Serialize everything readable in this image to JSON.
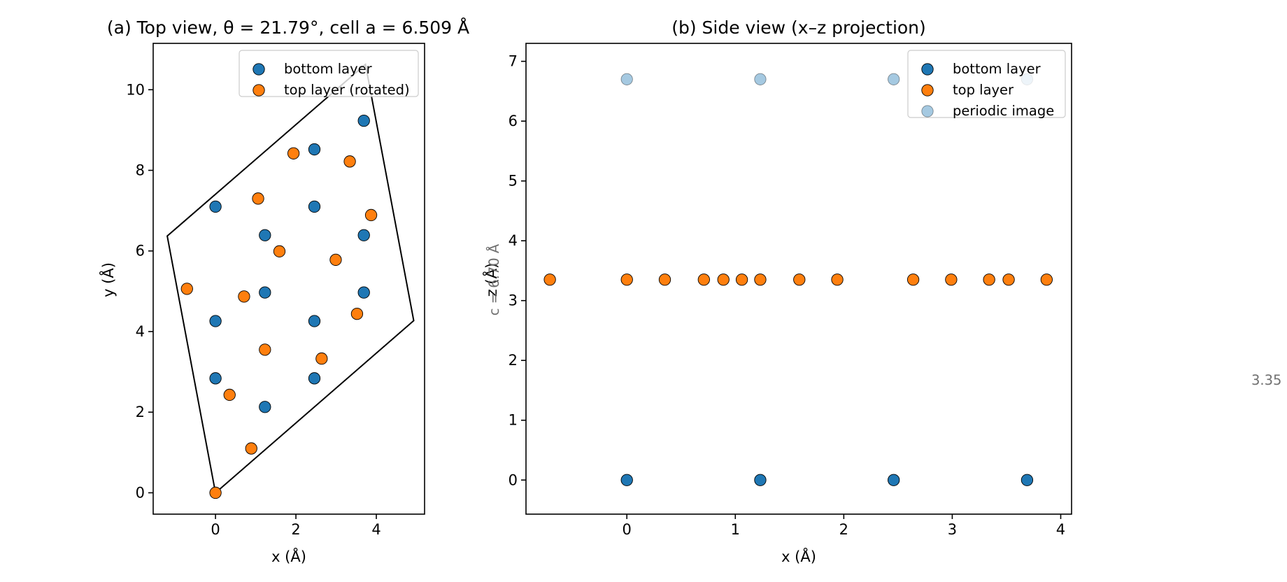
{
  "chart_data": [
    {
      "type": "scatter",
      "title": "(a) Top view, θ = 21.79°, cell a = 6.509 Å",
      "xlabel": "x (Å)",
      "ylabel": "y (Å)",
      "xlim": [
        -1.55,
        5.2
      ],
      "ylim": [
        -0.53,
        11.15
      ],
      "xticks": [
        0,
        2,
        4
      ],
      "yticks": [
        0,
        2,
        4,
        6,
        8,
        10
      ],
      "legend_position": "top-right",
      "colors": {
        "bottom": "#1f77b4",
        "top": "#ff7f0e",
        "cell": "#000000"
      },
      "cell_outline": [
        [
          0,
          0
        ],
        [
          4.93,
          4.27
        ],
        [
          3.73,
          10.63
        ],
        [
          -1.2,
          6.37
        ],
        [
          0,
          0
        ]
      ],
      "series": [
        {
          "name": "bottom layer",
          "color": "#1f77b4",
          "points": [
            [
              0,
              7.1
            ],
            [
              0,
              4.26
            ],
            [
              0,
              2.84
            ],
            [
              1.23,
              6.39
            ],
            [
              1.23,
              4.97
            ],
            [
              1.23,
              2.13
            ],
            [
              2.46,
              8.52
            ],
            [
              2.46,
              7.1
            ],
            [
              2.46,
              4.26
            ],
            [
              2.46,
              2.84
            ],
            [
              3.69,
              9.23
            ],
            [
              3.69,
              6.39
            ],
            [
              3.69,
              4.97
            ]
          ]
        },
        {
          "name": "top layer (rotated)",
          "color": "#ff7f0e",
          "points": [
            [
              0,
              0
            ],
            [
              0.89,
              1.1
            ],
            [
              0.35,
              2.43
            ],
            [
              1.23,
              3.55
            ],
            [
              2.64,
              3.33
            ],
            [
              3.52,
              4.44
            ],
            [
              0.71,
              4.87
            ],
            [
              -0.71,
              5.06
            ],
            [
              1.59,
              5.99
            ],
            [
              2.99,
              5.78
            ],
            [
              1.06,
              7.3
            ],
            [
              1.94,
              8.42
            ],
            [
              3.34,
              8.22
            ],
            [
              3.87,
              6.89
            ]
          ]
        }
      ]
    },
    {
      "type": "scatter",
      "title": "(b) Side view (x–z projection)",
      "xlabel": "x (Å)",
      "ylabel": "z (Å)",
      "ylabel_overlay": "c = 6.70 Å",
      "annotation": "3.35",
      "xlim": [
        -0.93,
        4.1
      ],
      "ylim": [
        -0.57,
        7.3
      ],
      "xticks": [
        0,
        1,
        2,
        3,
        4
      ],
      "yticks": [
        0,
        1,
        2,
        3,
        4,
        5,
        6,
        7
      ],
      "legend_position": "top-right",
      "series": [
        {
          "name": "bottom layer",
          "color": "#1f77b4",
          "points": [
            [
              0,
              0
            ],
            [
              1.23,
              0
            ],
            [
              2.46,
              0
            ],
            [
              3.69,
              0
            ]
          ]
        },
        {
          "name": "top layer",
          "color": "#ff7f0e",
          "points": [
            [
              -0.71,
              3.35
            ],
            [
              0,
              3.35
            ],
            [
              0.35,
              3.35
            ],
            [
              0.71,
              3.35
            ],
            [
              0.89,
              3.35
            ],
            [
              1.06,
              3.35
            ],
            [
              1.23,
              3.35
            ],
            [
              1.59,
              3.35
            ],
            [
              1.94,
              3.35
            ],
            [
              2.64,
              3.35
            ],
            [
              2.99,
              3.35
            ],
            [
              3.34,
              3.35
            ],
            [
              3.52,
              3.35
            ],
            [
              3.87,
              3.35
            ]
          ]
        },
        {
          "name": "periodic image",
          "color": "#1f77b4",
          "points": [
            [
              0,
              6.7
            ],
            [
              1.23,
              6.7
            ],
            [
              2.46,
              6.7
            ],
            [
              3.69,
              6.7
            ]
          ]
        }
      ]
    }
  ]
}
